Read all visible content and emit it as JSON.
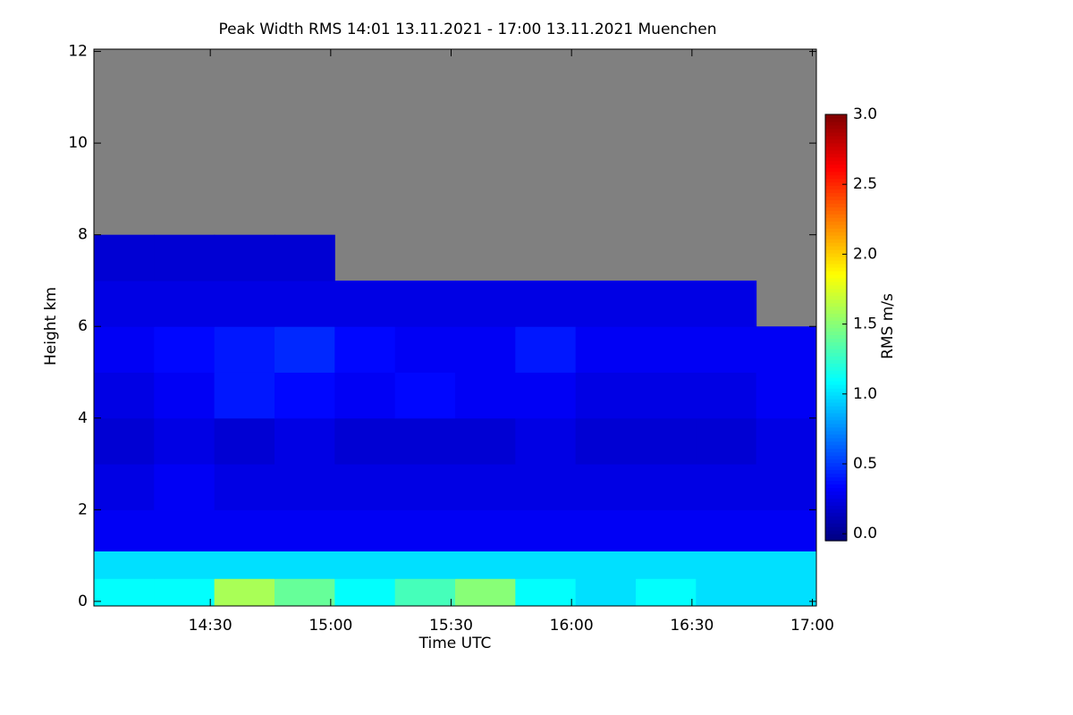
{
  "chart_data": {
    "type": "heatmap",
    "title": "Peak Width RMS   14:01 13.11.2021 - 17:00 13.11.2021 Muenchen",
    "x_label": "Time UTC",
    "y_label": "Height km",
    "colorbar_label": "RMS m/s",
    "colorscale": "jet",
    "missing_color": "#808080",
    "x": [
      841,
      856,
      871,
      886,
      901,
      916,
      931,
      946,
      961,
      976,
      991,
      1006,
      1021
    ],
    "y": [
      0,
      0.5,
      1.1,
      2,
      3,
      4,
      5,
      6,
      7,
      8
    ],
    "values": [
      [
        1.1,
        1.1,
        1.6,
        1.4,
        1.1,
        1.3,
        1.5,
        1.1,
        1.0,
        1.1,
        1.0,
        1.0
      ],
      [
        1.0,
        1.0,
        1.0,
        1.0,
        1.0,
        1.0,
        1.0,
        1.0,
        1.0,
        1.0,
        1.0,
        1.0
      ],
      [
        0.3,
        0.3,
        0.3,
        0.3,
        0.3,
        0.3,
        0.3,
        0.3,
        0.3,
        0.3,
        0.3,
        0.3
      ],
      [
        0.25,
        0.3,
        0.25,
        0.25,
        0.25,
        0.25,
        0.25,
        0.25,
        0.25,
        0.25,
        0.25,
        0.25
      ],
      [
        0.2,
        0.25,
        0.2,
        0.25,
        0.2,
        0.2,
        0.2,
        0.25,
        0.2,
        0.2,
        0.2,
        0.25
      ],
      [
        0.25,
        0.3,
        0.4,
        0.35,
        0.3,
        0.35,
        0.3,
        0.3,
        0.25,
        0.25,
        0.25,
        0.3
      ],
      [
        0.3,
        0.35,
        0.4,
        0.45,
        0.35,
        0.3,
        0.3,
        0.4,
        0.3,
        0.3,
        0.3,
        0.3
      ],
      [
        0.25,
        0.25,
        0.25,
        0.25,
        0.25,
        0.25,
        0.25,
        0.25,
        0.25,
        0.25,
        0.25,
        null
      ],
      [
        0.2,
        0.2,
        0.2,
        0.2,
        null,
        null,
        null,
        null,
        null,
        null,
        null,
        null
      ]
    ],
    "xlim": [
      841,
      1021
    ],
    "ylim": [
      -0.1,
      12.05
    ],
    "zlim": [
      -0.05,
      3.0
    ],
    "xticks": [
      {
        "value": 870,
        "label": "14:30"
      },
      {
        "value": 900,
        "label": "15:00"
      },
      {
        "value": 930,
        "label": "15:30"
      },
      {
        "value": 960,
        "label": "16:00"
      },
      {
        "value": 990,
        "label": "16:30"
      },
      {
        "value": 1020,
        "label": "17:00"
      }
    ],
    "yticks": [
      0,
      2,
      4,
      6,
      8,
      10,
      12
    ],
    "zticks": [
      {
        "value": 0,
        "label": "0.0"
      },
      {
        "value": 0.5,
        "label": "0.5"
      },
      {
        "value": 1,
        "label": "1.0"
      },
      {
        "value": 1.5,
        "label": "1.5"
      },
      {
        "value": 2,
        "label": "2.0"
      },
      {
        "value": 2.5,
        "label": "2.5"
      },
      {
        "value": 3,
        "label": "3.0"
      }
    ]
  }
}
